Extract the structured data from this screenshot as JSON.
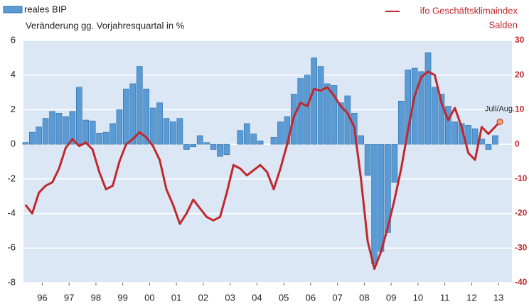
{
  "chart_data": {
    "type": "bar",
    "ylabel": "Veränderung gg. Vorjahresquartal in %",
    "y2label": "Salden",
    "annotation": "Juli/Aug.",
    "xlim": [
      1995.8,
      2014
    ],
    "xticks": [
      {
        "value": 1996.5,
        "label": "96"
      },
      {
        "value": 1997.5,
        "label": "97"
      },
      {
        "value": 1998.5,
        "label": "98"
      },
      {
        "value": 1999.5,
        "label": "99"
      },
      {
        "value": 2000.5,
        "label": "00"
      },
      {
        "value": 2001.5,
        "label": "01"
      },
      {
        "value": 2002.5,
        "label": "02"
      },
      {
        "value": 2003.5,
        "label": "03"
      },
      {
        "value": 2004.5,
        "label": "04"
      },
      {
        "value": 2005.5,
        "label": "05"
      },
      {
        "value": 2006.5,
        "label": "06"
      },
      {
        "value": 2007.5,
        "label": "07"
      },
      {
        "value": 2008.5,
        "label": "08"
      },
      {
        "value": 2009.5,
        "label": "09"
      },
      {
        "value": 2010.5,
        "label": "10"
      },
      {
        "value": 2011.5,
        "label": "11"
      },
      {
        "value": 2012.5,
        "label": "12"
      },
      {
        "value": 2013.5,
        "label": "13"
      }
    ],
    "ylim": [
      -8,
      6
    ],
    "yticks": [
      -8,
      -6,
      -4,
      -2,
      0,
      2,
      4,
      6
    ],
    "y2lim": [
      -40,
      30
    ],
    "y2ticks": [
      -40,
      -30,
      -20,
      -10,
      0,
      10,
      20,
      30
    ],
    "grid": true,
    "series": [
      {
        "name": "reales BIP",
        "type": "bar",
        "color": "#5b9bd5",
        "x": [
          1995.875,
          1996.125,
          1996.375,
          1996.625,
          1996.875,
          1997.125,
          1997.375,
          1997.625,
          1997.875,
          1998.125,
          1998.375,
          1998.625,
          1998.875,
          1999.125,
          1999.375,
          1999.625,
          1999.875,
          2000.125,
          2000.375,
          2000.625,
          2000.875,
          2001.125,
          2001.375,
          2001.625,
          2001.875,
          2002.125,
          2002.375,
          2002.625,
          2002.875,
          2003.125,
          2003.375,
          2003.625,
          2003.875,
          2004.125,
          2004.375,
          2004.625,
          2004.875,
          2005.125,
          2005.375,
          2005.625,
          2005.875,
          2006.125,
          2006.375,
          2006.625,
          2006.875,
          2007.125,
          2007.375,
          2007.625,
          2007.875,
          2008.125,
          2008.375,
          2008.625,
          2008.875,
          2009.125,
          2009.375,
          2009.625,
          2009.875,
          2010.125,
          2010.375,
          2010.625,
          2010.875,
          2011.125,
          2011.375,
          2011.625,
          2011.875,
          2012.125,
          2012.375,
          2012.625,
          2012.875,
          2013.125,
          2013.375
        ],
        "values": [
          0.1,
          0.7,
          1.0,
          1.5,
          1.9,
          1.8,
          1.6,
          1.9,
          3.3,
          1.4,
          1.35,
          0.65,
          0.7,
          1.2,
          2.0,
          3.2,
          3.5,
          4.5,
          3.2,
          2.1,
          2.4,
          1.5,
          1.3,
          1.5,
          -0.3,
          -0.15,
          0.5,
          0.1,
          -0.3,
          -0.7,
          -0.6,
          0,
          0.8,
          1.2,
          0.6,
          0.2,
          0,
          0.4,
          1.3,
          1.6,
          2.9,
          3.8,
          4.0,
          5.0,
          4.5,
          3.5,
          3.4,
          2.4,
          2.8,
          1.8,
          0.5,
          -1.8,
          -6.9,
          -6.2,
          -5.1,
          -2.2,
          2.5,
          4.3,
          4.4,
          4.2,
          5.3,
          3.3,
          2.9,
          2.2,
          1.3,
          1.2,
          1.1,
          0.9,
          0.3,
          -0.3,
          0.5
        ]
      },
      {
        "name": "ifo Geschäftsklimaindex",
        "type": "line",
        "axis": "y2",
        "color": "#c0282d",
        "x": [
          1995.875,
          1996.125,
          1996.375,
          1996.625,
          1996.875,
          1997.125,
          1997.375,
          1997.625,
          1997.875,
          1998.125,
          1998.375,
          1998.625,
          1998.875,
          1999.125,
          1999.375,
          1999.625,
          1999.875,
          2000.125,
          2000.375,
          2000.625,
          2000.875,
          2001.125,
          2001.375,
          2001.625,
          2001.875,
          2002.125,
          2002.375,
          2002.625,
          2002.875,
          2003.125,
          2003.375,
          2003.625,
          2003.875,
          2004.125,
          2004.375,
          2004.625,
          2004.875,
          2005.125,
          2005.375,
          2005.625,
          2005.875,
          2006.125,
          2006.375,
          2006.625,
          2006.875,
          2007.125,
          2007.375,
          2007.625,
          2007.875,
          2008.125,
          2008.375,
          2008.625,
          2008.875,
          2009.125,
          2009.375,
          2009.625,
          2009.875,
          2010.125,
          2010.375,
          2010.625,
          2010.875,
          2011.125,
          2011.375,
          2011.625,
          2011.875,
          2012.125,
          2012.375,
          2012.625,
          2012.875,
          2013.125,
          2013.55
        ],
        "values": [
          -17.5,
          -20,
          -14,
          -12,
          -11,
          -7,
          -1,
          1.5,
          -0.5,
          0.5,
          -1.5,
          -8,
          -13,
          -12,
          -5,
          0,
          1.5,
          3.5,
          2,
          -0.5,
          -4.5,
          -13,
          -17.5,
          -23,
          -20,
          -16,
          -18.5,
          -21,
          -22,
          -21,
          -14,
          -6,
          -7,
          -9,
          -7.5,
          -6,
          -8,
          -13,
          -7,
          0,
          8,
          12,
          11,
          16,
          15.5,
          16.5,
          14,
          11,
          9,
          5,
          -10,
          -28,
          -36,
          -31,
          -24,
          -16,
          -7,
          4,
          14,
          19.5,
          21,
          20,
          12,
          7,
          10.5,
          5,
          -2.5,
          -4.5,
          5,
          3,
          6.5
        ]
      }
    ]
  }
}
